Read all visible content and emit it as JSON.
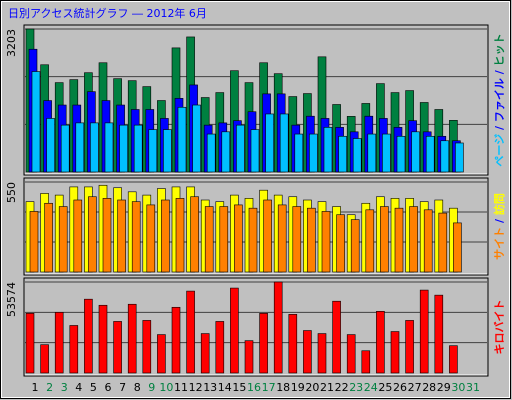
{
  "chart_data": [
    {
      "type": "bar",
      "title": "日別アクセス統計グラフ ― 2012年 6月",
      "ylim": [
        0,
        3203
      ],
      "yticks": [
        3203
      ],
      "series": [
        {
          "name": "ヒット",
          "color": "#008040",
          "values": [
            3203,
            2402,
            2002,
            2069,
            2224,
            2447,
            2091,
            2046,
            1913,
            1601,
            2780,
            3025,
            1668,
            1779,
            2269,
            2002,
            2447,
            2202,
            1690,
            1757,
            2580,
            1512,
            1246,
            1535,
            1980,
            1779,
            1824,
            1557,
            1400,
            1157,
            null
          ]
        },
        {
          "name": "ファイル",
          "color": "#0000ff",
          "values": [
            2750,
            1600,
            1500,
            1500,
            1800,
            1600,
            1500,
            1400,
            1400,
            1200,
            1650,
            1950,
            1050,
            1100,
            1150,
            1350,
            1750,
            1750,
            1050,
            1250,
            1200,
            1000,
            900,
            1250,
            1200,
            1000,
            1150,
            900,
            800,
            700,
            null
          ]
        },
        {
          "name": "ページ",
          "color": "#00c0ff",
          "values": [
            2250,
            1200,
            1050,
            1100,
            1100,
            1100,
            1050,
            1050,
            950,
            950,
            1450,
            1500,
            850,
            900,
            1050,
            950,
            1300,
            1300,
            850,
            850,
            1000,
            800,
            750,
            850,
            850,
            800,
            900,
            800,
            700,
            650,
            null
          ]
        }
      ]
    },
    {
      "type": "bar",
      "ylim": [
        0,
        550
      ],
      "yticks": [
        550
      ],
      "series": [
        {
          "name": "訪問",
          "color": "#ffff00",
          "values": [
            430,
            480,
            470,
            520,
            520,
            530,
            515,
            490,
            470,
            510,
            520,
            520,
            440,
            430,
            470,
            450,
            500,
            470,
            460,
            440,
            430,
            400,
            350,
            420,
            460,
            450,
            450,
            430,
            440,
            390,
            null
          ]
        },
        {
          "name": "サイト",
          "color": "#ff8000",
          "values": [
            370,
            420,
            400,
            440,
            460,
            450,
            440,
            430,
            410,
            440,
            450,
            460,
            400,
            400,
            410,
            390,
            440,
            410,
            400,
            390,
            370,
            350,
            320,
            380,
            400,
            390,
            400,
            380,
            360,
            300,
            null
          ]
        }
      ]
    },
    {
      "type": "bar",
      "ylim": [
        0,
        53574
      ],
      "yticks": [
        53574
      ],
      "categories": [
        "1",
        "2",
        "3",
        "4",
        "5",
        "6",
        "7",
        "8",
        "9",
        "10",
        "11",
        "12",
        "13",
        "14",
        "15",
        "16",
        "17",
        "18",
        "19",
        "20",
        "21",
        "22",
        "23",
        "24",
        "25",
        "26",
        "27",
        "28",
        "29",
        "30",
        "31"
      ],
      "category_colors": [
        "#000000",
        "#008040",
        "#008040",
        "#000000",
        "#000000",
        "#000000",
        "#000000",
        "#000000",
        "#008040",
        "#008040",
        "#000000",
        "#000000",
        "#000000",
        "#000000",
        "#000000",
        "#008040",
        "#008040",
        "#000000",
        "#000000",
        "#000000",
        "#000000",
        "#000000",
        "#008040",
        "#008040",
        "#000000",
        "#000000",
        "#000000",
        "#000000",
        "#000000",
        "#008040",
        "#008040"
      ],
      "series": [
        {
          "name": "キロバイト",
          "color": "#ff0000",
          "values": [
            35120,
            16667,
            35716,
            27977,
            43455,
            39883,
            30359,
            40478,
            30954,
            22620,
            38693,
            48217,
            23215,
            30359,
            50002,
            19048,
            35120,
            53574,
            34525,
            25001,
            23215,
            42264,
            22620,
            13096,
            36311,
            24406,
            30954,
            48812,
            45836,
            16072,
            null
          ]
        }
      ]
    }
  ]
}
